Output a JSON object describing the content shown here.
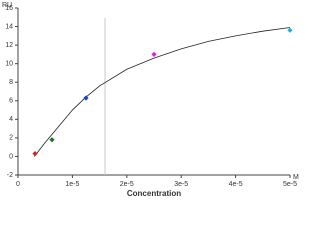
{
  "chart_data": {
    "type": "scatter",
    "y_unit": "RU",
    "x_unit": "M",
    "x_label": "Concentration",
    "xlim": [
      0,
      5e-05
    ],
    "ylim": [
      -2,
      16
    ],
    "xticks": [
      0,
      {
        "value": 1e-05,
        "label": "1e-5"
      },
      {
        "value": 2e-05,
        "label": "2e-5"
      },
      {
        "value": 3e-05,
        "label": "3e-5"
      },
      {
        "value": 4e-05,
        "label": "4e-5"
      },
      {
        "value": 5e-05,
        "label": "5e-5"
      }
    ],
    "yticks": [
      -2,
      0,
      2,
      4,
      6,
      8,
      10,
      12,
      14,
      16
    ],
    "vline_x": 1.6e-05,
    "vline_color": "#c8c8c8",
    "points": {
      "x": [
        3.125e-06,
        6.25e-06,
        1.25e-05,
        2.5e-05,
        5e-05
      ],
      "values": [
        0.3,
        1.8,
        6.3,
        11,
        13.6
      ],
      "colors": [
        "#d42020",
        "#1a7a1a",
        "#1a3fd4",
        "#e020e0",
        "#20b0d0"
      ]
    },
    "fit": {
      "color": "#222222",
      "x": [
        3e-06,
        5e-06,
        1e-05,
        1.25e-05,
        1.5e-05,
        2e-05,
        2.5e-05,
        3e-05,
        3.5e-05,
        4e-05,
        4.5e-05,
        5e-05
      ],
      "values": [
        0,
        1.5,
        5,
        6.4,
        7.6,
        9.4,
        10.6,
        11.6,
        12.4,
        13,
        13.5,
        13.9
      ]
    }
  }
}
